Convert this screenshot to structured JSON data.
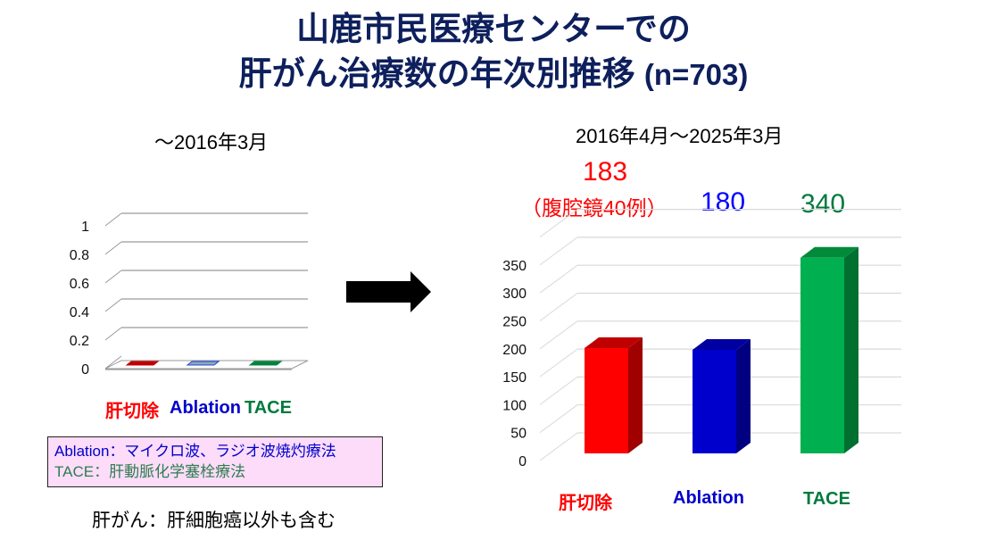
{
  "title": {
    "line1": "山鹿市民医療センターでの",
    "line2_main": "肝がん治療数の年次別推移 ",
    "line2_n": "(n=703)"
  },
  "arrow": {
    "icon": "right-arrow-icon"
  },
  "chart_data": [
    {
      "type": "bar",
      "title": "～2016年3月",
      "categories": [
        "肝切除",
        "Ablation",
        "TACE"
      ],
      "values": [
        0,
        0,
        0
      ],
      "colors": [
        "#c00000",
        "#8eaab8",
        "#00843d"
      ],
      "yticks": [
        "0",
        "0.2",
        "0.4",
        "0.6",
        "0.8",
        "1"
      ],
      "ylim": [
        0,
        1
      ],
      "xlabel": "",
      "ylabel": "",
      "grid": true,
      "style": "3d"
    },
    {
      "type": "bar",
      "title": "2016年4月～2025年3月",
      "categories": [
        "肝切除",
        "Ablation",
        "TACE"
      ],
      "values": [
        183,
        180,
        340
      ],
      "colors": [
        "#ff0000",
        "#0000cc",
        "#00b050"
      ],
      "side_colors": [
        "#a00000",
        "#000080",
        "#007030"
      ],
      "top_colors": [
        "#c00000",
        "#0000a0",
        "#008a3a"
      ],
      "yticks": [
        "0",
        "50",
        "100",
        "150",
        "200",
        "250",
        "300",
        "350"
      ],
      "ylim": [
        0,
        400
      ],
      "xlabel": "",
      "ylabel": "",
      "grid": true,
      "style": "3d",
      "annotations": [
        "183",
        "（腹腔鏡40例）",
        "180",
        "340"
      ]
    }
  ],
  "left_chart": {
    "period": "～2016年3月",
    "labels": [
      {
        "text": "肝切除",
        "color": "#ff0000"
      },
      {
        "text": "Ablation",
        "color": "#0000cc"
      },
      {
        "text": "TACE",
        "color": "#007a3d"
      }
    ]
  },
  "right_chart": {
    "period": "2016年4月～2025年3月",
    "value_labels": [
      {
        "text": "183",
        "color": "#ff0000"
      },
      {
        "text": "180",
        "color": "#0000ff"
      },
      {
        "text": "340",
        "color": "#007a3d"
      }
    ],
    "laparoscopic_note": "（腹腔鏡40例）",
    "labels": [
      {
        "text": "肝切除",
        "color": "#ff0000"
      },
      {
        "text": "Ablation",
        "color": "#0000cc"
      },
      {
        "text": "TACE",
        "color": "#007a3d"
      }
    ]
  },
  "legend_box": {
    "ablation_term": "Ablation",
    "ablation_desc": "：マイクロ波、ラジオ波焼灼療法",
    "tace_term": "TACE",
    "tace_desc": "：肝動脈化学塞栓療法",
    "ablation_color": "#0000cc",
    "tace_color": "#2e7d4f",
    "background": "#fcdcf8"
  },
  "footnote": "肝がん：肝細胞癌以外も含む"
}
